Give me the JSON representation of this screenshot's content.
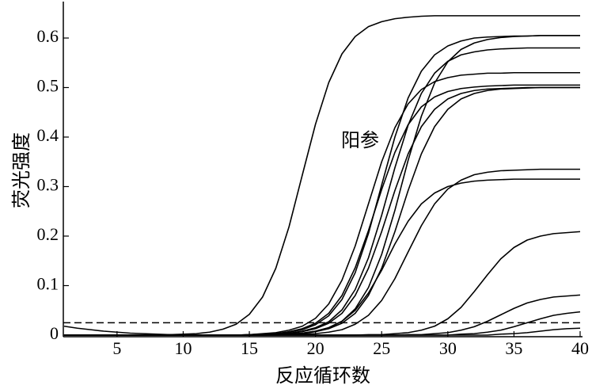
{
  "chart_data": {
    "type": "line",
    "xlabel": "反应循环数",
    "ylabel": "荧光强度",
    "annotation": "阳参",
    "x": [
      1,
      2,
      3,
      4,
      5,
      6,
      7,
      8,
      9,
      10,
      11,
      12,
      13,
      14,
      15,
      16,
      17,
      18,
      19,
      20,
      21,
      22,
      23,
      24,
      25,
      26,
      27,
      28,
      29,
      30,
      31,
      32,
      33,
      34,
      35,
      36,
      37,
      38,
      39,
      40
    ],
    "xlim": [
      1,
      40
    ],
    "xticks": [
      5,
      10,
      15,
      20,
      25,
      30,
      35,
      40
    ],
    "ylim": [
      0,
      0.67
    ],
    "yticks": [
      0,
      0.1,
      0.2,
      0.3,
      0.4,
      0.5,
      0.6
    ],
    "threshold": 0.025,
    "series": [
      {
        "color": "#000000",
        "values": [
          0,
          0,
          0,
          0,
          0,
          0,
          0,
          0,
          0.001,
          0.002,
          0.003,
          0.006,
          0.012,
          0.022,
          0.042,
          0.077,
          0.135,
          0.219,
          0.323,
          0.426,
          0.51,
          0.568,
          0.603,
          0.623,
          0.633,
          0.639,
          0.642,
          0.644,
          0.645,
          0.645,
          0.645,
          0.645,
          0.645,
          0.645,
          0.645,
          0.645,
          0.645,
          0.645,
          0.645,
          0.645
        ]
      },
      {
        "color": "#000000",
        "values": [
          0,
          0,
          0,
          0,
          0,
          0,
          0,
          0,
          0,
          0,
          0,
          0,
          0,
          0,
          0.001,
          0.002,
          0.003,
          0.006,
          0.011,
          0.021,
          0.039,
          0.072,
          0.126,
          0.205,
          0.303,
          0.4,
          0.479,
          0.533,
          0.566,
          0.584,
          0.594,
          0.6,
          0.602,
          0.603,
          0.604,
          0.604,
          0.605,
          0.605,
          0.605,
          0.605
        ]
      },
      {
        "color": "#000000",
        "values": [
          0,
          0,
          0,
          0,
          0,
          0,
          0,
          0,
          0,
          0,
          0,
          0,
          0,
          0,
          0,
          0,
          0.001,
          0.002,
          0.004,
          0.008,
          0.015,
          0.028,
          0.053,
          0.096,
          0.163,
          0.252,
          0.353,
          0.442,
          0.509,
          0.552,
          0.577,
          0.59,
          0.597,
          0.601,
          0.603,
          0.604,
          0.605,
          0.605,
          0.605,
          0.605
        ]
      },
      {
        "color": "#000000",
        "values": [
          0,
          0,
          0,
          0,
          0,
          0,
          0,
          0,
          0,
          0,
          0,
          0,
          0,
          0,
          0,
          0.001,
          0.002,
          0.004,
          0.008,
          0.015,
          0.027,
          0.051,
          0.092,
          0.156,
          0.242,
          0.338,
          0.424,
          0.488,
          0.529,
          0.553,
          0.566,
          0.572,
          0.576,
          0.578,
          0.579,
          0.58,
          0.58,
          0.58,
          0.58,
          0.58
        ]
      },
      {
        "color": "#000000",
        "values": [
          0,
          0,
          0,
          0,
          0,
          0,
          0,
          0,
          0,
          0,
          0,
          0,
          0,
          0,
          0.001,
          0.003,
          0.005,
          0.01,
          0.018,
          0.034,
          0.063,
          0.111,
          0.18,
          0.265,
          0.35,
          0.419,
          0.467,
          0.496,
          0.512,
          0.52,
          0.525,
          0.527,
          0.529,
          0.529,
          0.53,
          0.53,
          0.53,
          0.53,
          0.53,
          0.53
        ]
      },
      {
        "color": "#000000",
        "values": [
          0,
          0,
          0,
          0,
          0,
          0,
          0,
          0,
          0,
          0,
          0,
          0,
          0,
          0,
          0.001,
          0.002,
          0.003,
          0.007,
          0.013,
          0.024,
          0.044,
          0.08,
          0.136,
          0.211,
          0.294,
          0.369,
          0.425,
          0.461,
          0.481,
          0.492,
          0.498,
          0.501,
          0.503,
          0.504,
          0.505,
          0.505,
          0.505,
          0.505,
          0.505,
          0.505
        ]
      },
      {
        "color": "#000000",
        "values": [
          0,
          0,
          0,
          0,
          0,
          0,
          0,
          0,
          0,
          0,
          0,
          0,
          0,
          0,
          0,
          0.001,
          0.002,
          0.003,
          0.007,
          0.013,
          0.024,
          0.044,
          0.08,
          0.135,
          0.209,
          0.292,
          0.366,
          0.421,
          0.456,
          0.477,
          0.488,
          0.494,
          0.497,
          0.498,
          0.499,
          0.5,
          0.5,
          0.5,
          0.5,
          0.5
        ]
      },
      {
        "color": "#000000",
        "values": [
          0,
          0,
          0,
          0,
          0,
          0,
          0,
          0,
          0,
          0,
          0,
          0,
          0,
          0,
          0,
          0,
          0.001,
          0.002,
          0.003,
          0.007,
          0.013,
          0.024,
          0.044,
          0.08,
          0.135,
          0.209,
          0.292,
          0.366,
          0.421,
          0.456,
          0.477,
          0.488,
          0.494,
          0.497,
          0.498,
          0.499,
          0.5,
          0.5,
          0.5,
          0.5
        ]
      },
      {
        "color": "#000000",
        "values": [
          0,
          0,
          0,
          0,
          0,
          0,
          0,
          0,
          0,
          0,
          0,
          0,
          0,
          0,
          0,
          0,
          0,
          0.001,
          0.002,
          0.003,
          0.006,
          0.011,
          0.022,
          0.04,
          0.07,
          0.114,
          0.168,
          0.221,
          0.265,
          0.295,
          0.313,
          0.324,
          0.329,
          0.332,
          0.333,
          0.334,
          0.335,
          0.335,
          0.335,
          0.335
        ]
      },
      {
        "color": "#000000",
        "values": [
          0,
          0,
          0,
          0,
          0,
          0,
          0,
          0,
          0,
          0,
          0,
          0,
          0,
          0,
          0,
          0.001,
          0.001,
          0.002,
          0.004,
          0.008,
          0.015,
          0.028,
          0.05,
          0.085,
          0.131,
          0.184,
          0.23,
          0.265,
          0.287,
          0.3,
          0.307,
          0.311,
          0.313,
          0.314,
          0.315,
          0.315,
          0.315,
          0.315,
          0.315,
          0.315
        ]
      },
      {
        "color": "#000000",
        "values": [
          0,
          0,
          0,
          0,
          0,
          0,
          0,
          0,
          0,
          0,
          0,
          0,
          0,
          0,
          0,
          0,
          0,
          0,
          0,
          0,
          0,
          0,
          0,
          0.001,
          0.001,
          0.003,
          0.005,
          0.01,
          0.018,
          0.033,
          0.056,
          0.088,
          0.122,
          0.154,
          0.177,
          0.192,
          0.2,
          0.205,
          0.207,
          0.209
        ]
      },
      {
        "color": "#000000",
        "values": [
          0,
          0,
          0,
          0,
          0,
          0,
          0,
          0,
          0,
          0,
          0,
          0,
          0,
          0,
          0,
          0,
          0,
          0,
          0,
          0,
          0,
          0,
          0,
          0,
          0,
          0,
          0.001,
          0.001,
          0.003,
          0.005,
          0.01,
          0.017,
          0.028,
          0.041,
          0.054,
          0.065,
          0.072,
          0.077,
          0.079,
          0.081
        ]
      },
      {
        "color": "#000000",
        "values": [
          0.018,
          0.014,
          0.011,
          0.008,
          0.006,
          0.004,
          0.003,
          0.002,
          0.001,
          0,
          0,
          0,
          0,
          0,
          0,
          0,
          0,
          0,
          0,
          0,
          0,
          0,
          0,
          0,
          0,
          0,
          0,
          0,
          0,
          0,
          0.002,
          0.003,
          0.006,
          0.01,
          0.017,
          0.025,
          0.033,
          0.04,
          0.044,
          0.047
        ]
      },
      {
        "color": "#000000",
        "values": [
          0,
          0,
          0,
          0,
          0,
          0,
          0,
          0,
          0,
          0,
          0,
          0,
          0,
          0,
          0,
          0,
          0,
          0,
          0,
          0,
          0,
          0,
          0,
          0,
          0,
          0,
          0,
          0,
          0,
          0,
          0,
          0,
          0,
          0.002,
          0.003,
          0.005,
          0.008,
          0.011,
          0.013,
          0.014
        ]
      }
    ]
  }
}
